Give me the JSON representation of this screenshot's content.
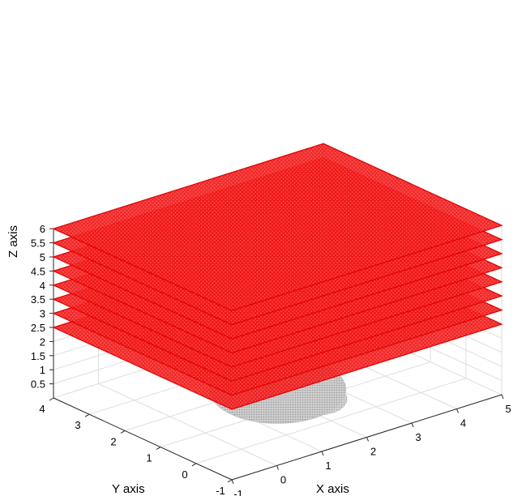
{
  "chart_data": {
    "type": "scatter3d",
    "xlabel": "X axis",
    "ylabel": "Y axis",
    "zlabel": "Z axis",
    "xlim": [
      -1,
      5
    ],
    "ylim": [
      -1,
      4
    ],
    "zlim": [
      0,
      6
    ],
    "xticks": [
      "-1",
      "0",
      "1",
      "2",
      "3",
      "4",
      "5"
    ],
    "yticks": [
      "-1",
      "0",
      "1",
      "2",
      "3",
      "4"
    ],
    "zticks": [
      "0.5",
      "1",
      "1.5",
      "2",
      "2.5",
      "3",
      "3.5",
      "4",
      "4.5",
      "5",
      "5.5",
      "6"
    ],
    "grid": true,
    "view": "3d-isometric",
    "series": [
      {
        "kind": "point-grid-planes",
        "color": "#ff0000",
        "marker": "circle",
        "x_range": [
          -1,
          5
        ],
        "y_range": [
          -1,
          4
        ],
        "planes_z": [
          2.5,
          3,
          3.5,
          4,
          4.5,
          5,
          5.5,
          6
        ]
      },
      {
        "kind": "point-cloud-object",
        "color": "#b4b4b4",
        "center_x": 2,
        "center_y": 1.5,
        "z_range": [
          0,
          0.5
        ]
      }
    ]
  }
}
